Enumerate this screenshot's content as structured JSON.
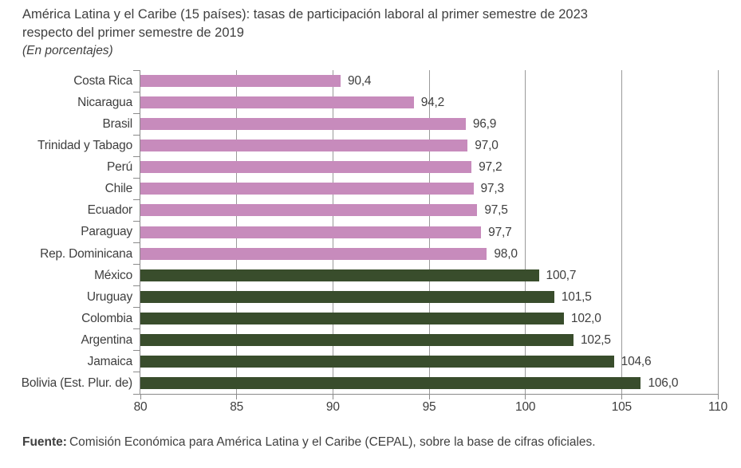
{
  "header": {
    "title_line1": "América Latina y el Caribe (15 países): tasas de participación laboral al primer semestre de 2023",
    "title_line2": "respecto del primer semestre de 2019",
    "subtitle": "(En porcentajes)"
  },
  "chart_data": {
    "type": "bar",
    "orientation": "horizontal",
    "title": "América Latina y el Caribe (15 países): tasas de participación laboral al primer semestre de 2023 respecto del primer semestre de 2019",
    "subtitle": "(En porcentajes)",
    "categories": [
      "Costa Rica",
      "Nicaragua",
      "Brasil",
      "Trinidad y Tabago",
      "Perú",
      "Chile",
      "Ecuador",
      "Paraguay",
      "Rep. Dominicana",
      "México",
      "Uruguay",
      "Colombia",
      "Argentina",
      "Jamaica",
      "Bolivia (Est. Plur. de)"
    ],
    "values": [
      90.4,
      94.2,
      96.9,
      97.0,
      97.2,
      97.3,
      97.5,
      97.7,
      98.0,
      100.7,
      101.5,
      102.0,
      102.5,
      104.6,
      106.0
    ],
    "xlim": [
      80,
      110
    ],
    "xticks": [
      80,
      85,
      90,
      95,
      100,
      105,
      110
    ],
    "grid": true,
    "legend": "none",
    "decimal_separator": ",",
    "threshold": 100,
    "colors": {
      "below_100": "#c78bbc",
      "above_100": "#394d2c",
      "gridline": "#9a9a9a",
      "axis": "#8a8a8a",
      "text": "#3e3e3e"
    }
  },
  "footer": {
    "source_label": "Fuente:",
    "source_text": "Comisión Económica para América Latina y el Caribe (CEPAL), sobre la base de cifras oficiales."
  }
}
